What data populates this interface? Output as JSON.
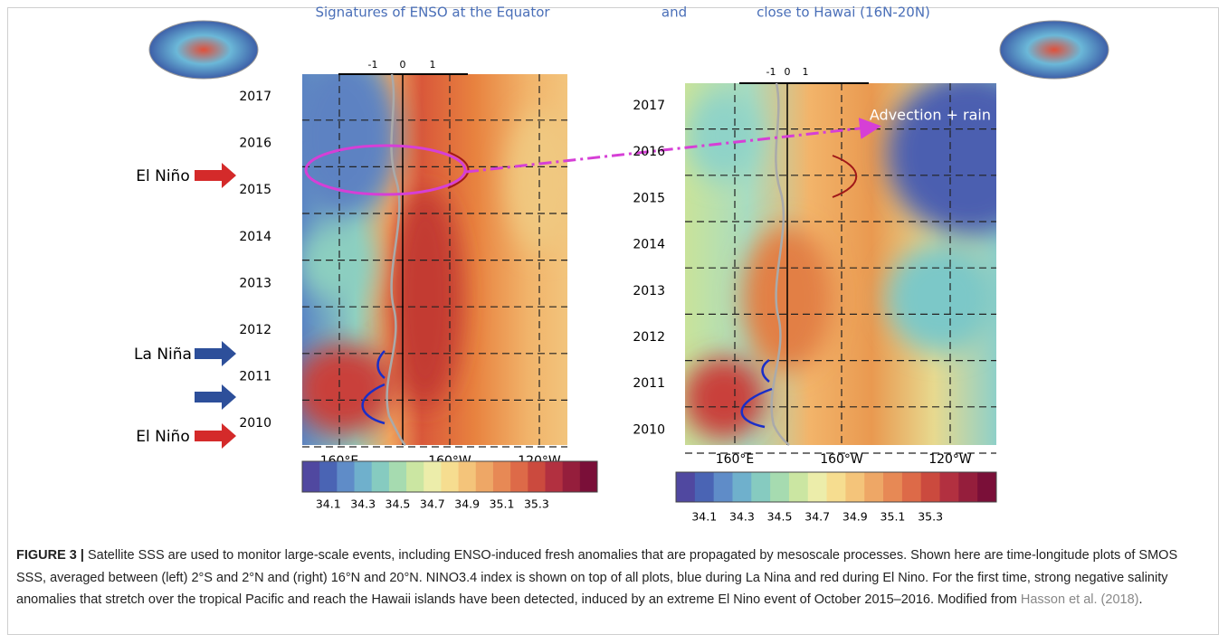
{
  "figure": {
    "left_title": "Signatures of ENSO at the Equator",
    "joiner": "and",
    "right_title": "close to Hawai (16N-20N)",
    "index_ticks": [
      "-1",
      "0",
      "1"
    ],
    "years": [
      "2017",
      "2016",
      "2015",
      "2014",
      "2013",
      "2012",
      "2011",
      "2010"
    ],
    "longitudes": [
      "160°E",
      "160°W",
      "120°W"
    ],
    "colorbar_labels": [
      "34.1",
      "34.3",
      "34.5",
      "34.7",
      "34.9",
      "35.1",
      "35.3"
    ],
    "events": [
      "El Niño",
      "La Niña",
      "El Niño"
    ],
    "annotation": "Advection + rain"
  },
  "caption": {
    "label": "FIGURE 3 |",
    "text": " Satellite SSS are used to monitor large-scale events, including ENSO-induced fresh anomalies that are propagated by mesoscale processes. Shown here are time-longitude plots of SMOS SSS, averaged between (left) 2°S and 2°N and (right) 16°N and 20°N. NINO3.4 index is shown on top of all plots, blue during La Nina and red during El Nino. For the first time, strong negative salinity anomalies that stretch over the tropical Pacific and reach the Hawaii islands have been detected, induced by an extreme El Nino event of October 2015–2016. Modified from ",
    "link": "Hasson et al. (2018)",
    "end": "."
  }
}
